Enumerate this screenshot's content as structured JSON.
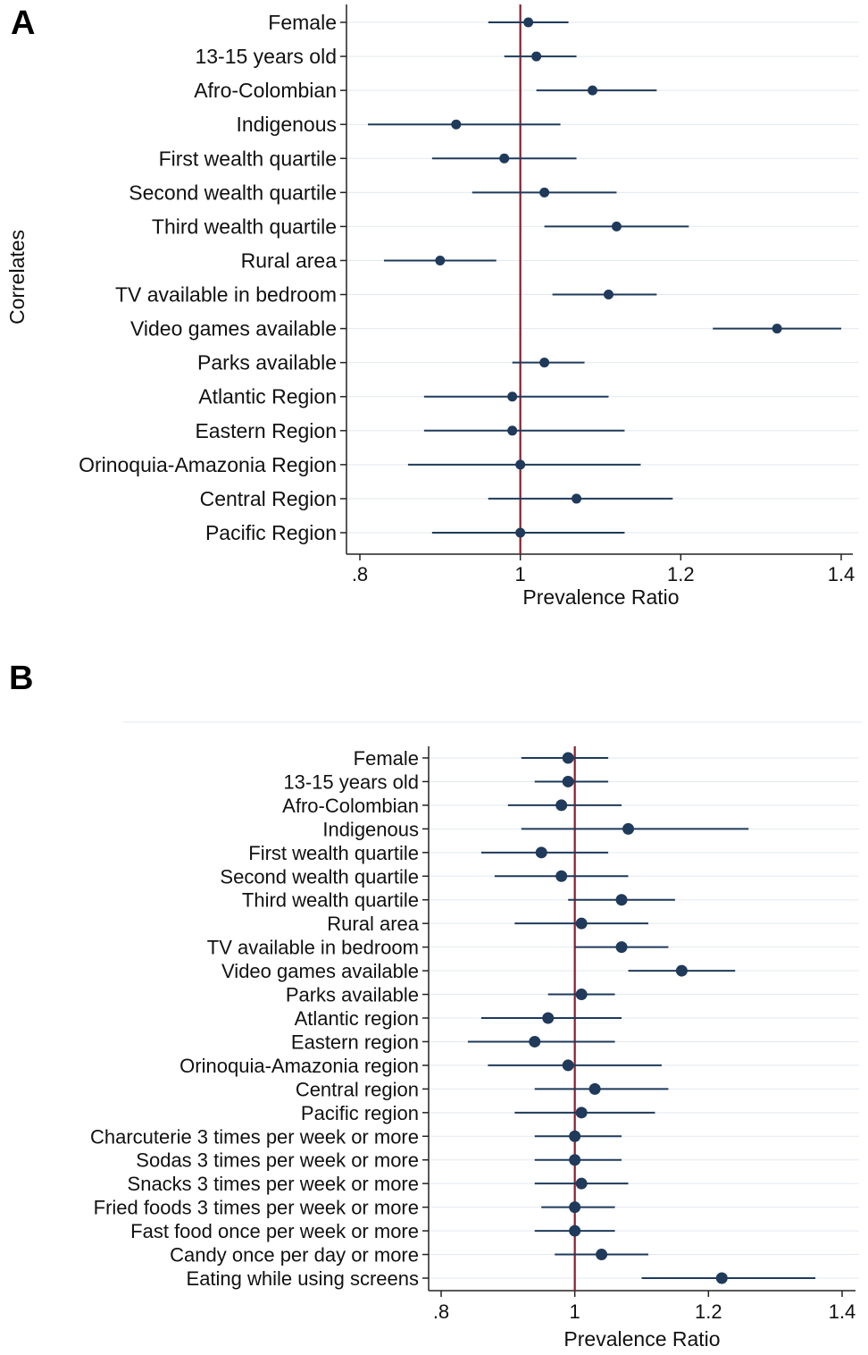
{
  "chart_data": [
    {
      "panel": "A",
      "type": "scatter",
      "subtype": "forest-plot",
      "title": "",
      "xlabel": "Prevalence Ratio",
      "ylabel": "Correlates",
      "xlim": [
        0.8,
        1.4
      ],
      "xticks": [
        0.8,
        1.0,
        1.2,
        1.4
      ],
      "xtick_labels": [
        ".8",
        "1",
        "1.2",
        "1.4"
      ],
      "reference_line": 1.0,
      "reference_color": "#8b1a2b",
      "point_color": "#1f3a5a",
      "categories": [
        "Female",
        "13-15 years old",
        "Afro-Colombian",
        "Indigenous",
        "First wealth quartile",
        "Second wealth quartile",
        "Third wealth quartile",
        "Rural area",
        "TV available in bedroom",
        "Video games available",
        "Parks available",
        "Atlantic Region",
        "Eastern Region",
        "Orinoquia-Amazonia Region",
        "Central Region",
        "Pacific Region"
      ],
      "estimates": [
        1.01,
        1.02,
        1.09,
        0.92,
        0.98,
        1.03,
        1.12,
        0.9,
        1.11,
        1.32,
        1.03,
        0.99,
        0.99,
        1.0,
        1.07,
        1.0
      ],
      "lower": [
        0.96,
        0.98,
        1.02,
        0.81,
        0.89,
        0.94,
        1.03,
        0.83,
        1.04,
        1.24,
        0.99,
        0.88,
        0.88,
        0.86,
        0.96,
        0.89
      ],
      "upper": [
        1.06,
        1.07,
        1.17,
        1.05,
        1.07,
        1.12,
        1.21,
        0.97,
        1.17,
        1.4,
        1.08,
        1.11,
        1.13,
        1.15,
        1.19,
        1.13
      ]
    },
    {
      "panel": "B",
      "type": "scatter",
      "subtype": "forest-plot",
      "title": "",
      "xlabel": "Prevalence Ratio",
      "ylabel": "",
      "xlim": [
        0.8,
        1.4
      ],
      "xticks": [
        0.8,
        1.0,
        1.2,
        1.4
      ],
      "xtick_labels": [
        ".8",
        "1",
        "1.2",
        "1.4"
      ],
      "reference_line": 1.0,
      "reference_color": "#8b1a2b",
      "point_color": "#1f3a5a",
      "categories": [
        "Female",
        "13-15 years old",
        "Afro-Colombian",
        "Indigenous",
        "First wealth quartile",
        "Second wealth quartile",
        "Third wealth quartile",
        "Rural area",
        "TV available in bedroom",
        "Video games available ",
        "Parks available",
        "Atlantic region",
        "Eastern region",
        "Orinoquia-Amazonia region",
        "Central region",
        "Pacific region",
        "Charcuterie 3 times per week or more",
        "Sodas 3 times per week or more",
        "Snacks 3 times per week or more",
        "Fried foods 3 times per week or more",
        "Fast food once per week or more",
        "Candy once per day or more",
        "Eating while using screens"
      ],
      "estimates": [
        0.99,
        0.99,
        0.98,
        1.08,
        0.95,
        0.98,
        1.07,
        1.01,
        1.07,
        1.16,
        1.01,
        0.96,
        0.94,
        0.99,
        1.03,
        1.01,
        1.0,
        1.0,
        1.01,
        1.0,
        1.0,
        1.04,
        1.22
      ],
      "lower": [
        0.92,
        0.94,
        0.9,
        0.92,
        0.86,
        0.88,
        0.99,
        0.91,
        1.0,
        1.08,
        0.96,
        0.86,
        0.84,
        0.87,
        0.94,
        0.91,
        0.94,
        0.94,
        0.94,
        0.95,
        0.94,
        0.97,
        1.1
      ],
      "upper": [
        1.05,
        1.05,
        1.07,
        1.26,
        1.05,
        1.08,
        1.15,
        1.11,
        1.14,
        1.24,
        1.06,
        1.07,
        1.06,
        1.13,
        1.14,
        1.12,
        1.07,
        1.07,
        1.08,
        1.06,
        1.06,
        1.11,
        1.36
      ]
    }
  ]
}
